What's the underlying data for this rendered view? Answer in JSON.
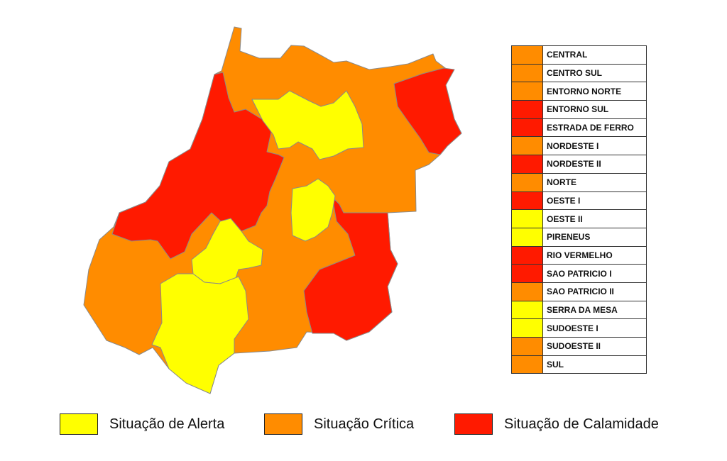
{
  "colors": {
    "alerta": "#FFFF00",
    "critica": "#FF8C00",
    "calamidade": "#FF1A00",
    "border": "#8a8a8a"
  },
  "regions": [
    {
      "name": "CENTRAL",
      "status": "critica"
    },
    {
      "name": "CENTRO SUL",
      "status": "critica"
    },
    {
      "name": "ENTORNO NORTE",
      "status": "critica"
    },
    {
      "name": "ENTORNO SUL",
      "status": "calamidade"
    },
    {
      "name": "ESTRADA DE FERRO",
      "status": "calamidade"
    },
    {
      "name": "NORDESTE I",
      "status": "critica"
    },
    {
      "name": "NORDESTE II",
      "status": "calamidade"
    },
    {
      "name": "NORTE",
      "status": "critica"
    },
    {
      "name": "OESTE I",
      "status": "calamidade"
    },
    {
      "name": "OESTE II",
      "status": "alerta"
    },
    {
      "name": "PIRENEUS",
      "status": "alerta"
    },
    {
      "name": "RIO VERMELHO",
      "status": "calamidade"
    },
    {
      "name": "SAO PATRICIO I",
      "status": "calamidade"
    },
    {
      "name": "SAO PATRICIO II",
      "status": "critica"
    },
    {
      "name": "SERRA DA MESA",
      "status": "alerta"
    },
    {
      "name": "SUDOESTE I",
      "status": "alerta"
    },
    {
      "name": "SUDOESTE II",
      "status": "critica"
    },
    {
      "name": "SUL",
      "status": "critica"
    }
  ],
  "legend": [
    {
      "label": "Situação de Alerta",
      "status": "alerta"
    },
    {
      "label": "Situação Crítica",
      "status": "critica"
    },
    {
      "label": "Situação de Calamidade",
      "status": "calamidade"
    }
  ]
}
